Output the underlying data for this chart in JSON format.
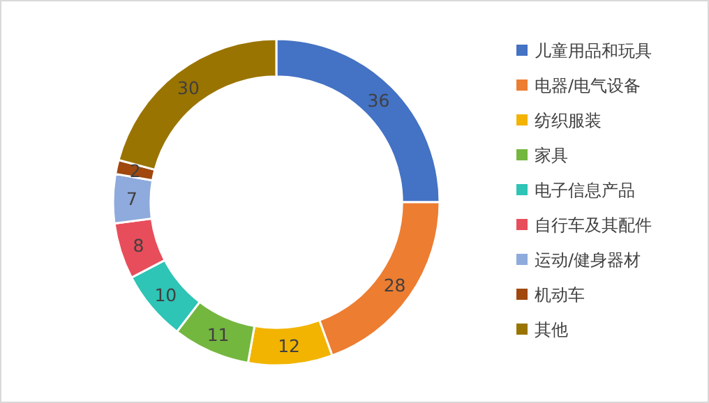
{
  "chart_data": {
    "type": "donut",
    "categories": [
      "儿童用品和玩具",
      "电器/电气设备",
      "纺织服装",
      "家具",
      "电子信息产品",
      "自行车及其配件",
      "运动/健身器材",
      "机动车",
      "其他"
    ],
    "values": [
      36,
      28,
      12,
      11,
      10,
      8,
      7,
      2,
      30
    ],
    "colors": [
      "#4472c4",
      "#ed7d31",
      "#f2b400",
      "#74b73f",
      "#2ec4b6",
      "#e84d5b",
      "#8faadc",
      "#a0480e",
      "#9a7400"
    ],
    "data_labels": true,
    "legend": "right"
  }
}
